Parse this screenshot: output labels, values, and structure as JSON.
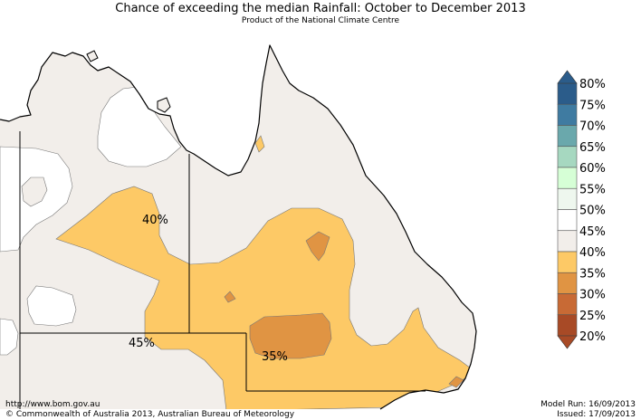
{
  "title": "Chance of exceeding the median Rainfall: October to December 2013",
  "subtitle": "Product of the National Climate Centre",
  "map_labels": [
    {
      "text": "40%"
    },
    {
      "text": "45%"
    },
    {
      "text": "35%"
    }
  ],
  "legend": {
    "labels": [
      "80%",
      "75%",
      "70%",
      "65%",
      "60%",
      "55%",
      "50%",
      "45%",
      "40%",
      "35%",
      "30%",
      "25%",
      "20%"
    ],
    "colors": [
      "#2b5c8a",
      "#3f7ba1",
      "#6aa8ac",
      "#a6d8c0",
      "#d6ffd6",
      "#eef7ee",
      "#ffffff",
      "#ffffff",
      "#f2eeea",
      "#fdc966",
      "#e09443",
      "#c86a35",
      "#a84a26"
    ]
  },
  "colors": {
    "neutral": "#f2eeea",
    "yellow": "#fdc966",
    "orange": "#e09443",
    "white": "#ffffff"
  },
  "footer": {
    "url": "http://www.bom.gov.au",
    "copyright": "©  Commonwealth of Australia 2013, Australian Bureau of Meteorology",
    "model_run": "Model Run: 16/09/2013",
    "issued": "Issued: 17/09/2013"
  }
}
